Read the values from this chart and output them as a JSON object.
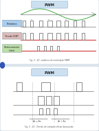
{
  "outer_bg": "#e8eef5",
  "card_bg": "#ffffff",
  "card_edge": "#c0ccd8",
  "title_text": "PWM",
  "title_bg": "#cce0f0",
  "title_edge": "#99bbdd",
  "sin_color": "#44aa44",
  "axis_color": "#555555",
  "red_line": "#cc2222",
  "pulse_edge": "#333333",
  "pulse_face": "#ffffff",
  "label1_bg": "#aaccee",
  "label2_bg": "#ddbbbb",
  "label3_bg": "#bbddaa",
  "label_edge": "#889999",
  "caption_color": "#555555",
  "dashed_color": "#aaaaaa",
  "blue_circle": "#3355bb",
  "panel1_caption": "Fig. 3 - 10 - anãlises da modulação PWM.",
  "panel2_caption": "Fig. 3 - 10 - Tensão de variação eficaz da posição."
}
